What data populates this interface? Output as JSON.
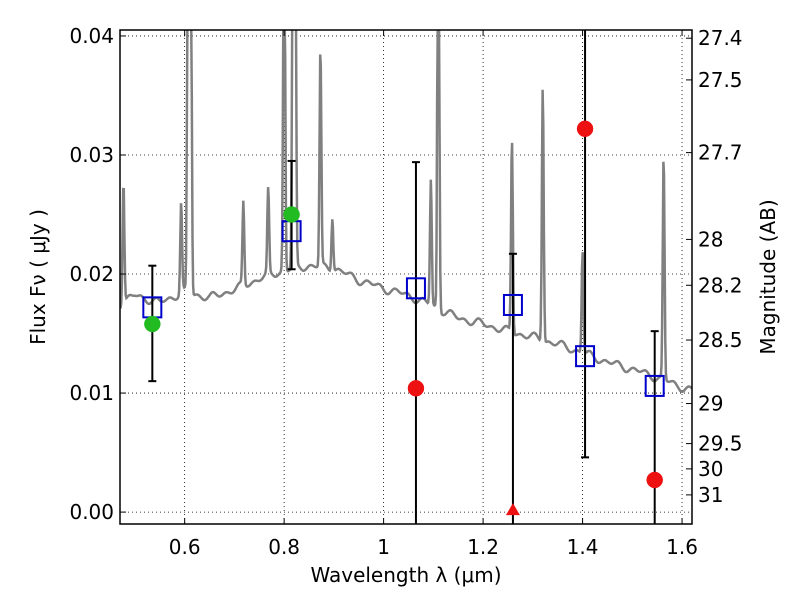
{
  "chart_data": {
    "type": "scatter",
    "xlabel": "Wavelength  λ (μm)",
    "ylabel": "Flux  Fν  ( μJy )",
    "y2label": "Magnitude (AB)",
    "xlim": [
      0.47,
      1.62
    ],
    "ylim": [
      -0.001,
      0.0405
    ],
    "grid": true,
    "x_ticks": [
      0.6,
      0.8,
      1.0,
      1.2,
      1.4,
      1.6
    ],
    "x_tick_labels": [
      "0.6",
      "0.8",
      "1",
      "1.2",
      "1.4",
      "1.6"
    ],
    "y_ticks": [
      0.0,
      0.01,
      0.02,
      0.03,
      0.04
    ],
    "y_tick_labels": [
      "0.00",
      "0.01",
      "0.02",
      "0.03",
      "0.04"
    ],
    "y2_ticks": [
      {
        "mag": 27.4,
        "label": "27.4"
      },
      {
        "mag": 27.5,
        "label": "27.5"
      },
      {
        "mag": 27.7,
        "label": "27.7"
      },
      {
        "mag": 28.0,
        "label": "28"
      },
      {
        "mag": 28.2,
        "label": "28.2"
      },
      {
        "mag": 28.5,
        "label": "28.5"
      },
      {
        "mag": 29.0,
        "label": "29"
      },
      {
        "mag": 29.5,
        "label": "29.5"
      },
      {
        "mag": 30.0,
        "label": "30"
      },
      {
        "mag": 31.0,
        "label": "31"
      }
    ],
    "model_sed": {
      "color": "#808080",
      "continuum": [
        [
          0.47,
          0.0175
        ],
        [
          0.5,
          0.0182
        ],
        [
          0.55,
          0.0176
        ],
        [
          0.6,
          0.0185
        ],
        [
          0.65,
          0.018
        ],
        [
          0.7,
          0.0187
        ],
        [
          0.75,
          0.0196
        ],
        [
          0.8,
          0.0203
        ],
        [
          0.85,
          0.0207
        ],
        [
          0.9,
          0.0205
        ],
        [
          0.95,
          0.0195
        ],
        [
          1.0,
          0.0188
        ],
        [
          1.05,
          0.0182
        ],
        [
          1.1,
          0.0173
        ],
        [
          1.15,
          0.0163
        ],
        [
          1.2,
          0.0158
        ],
        [
          1.25,
          0.0152
        ],
        [
          1.3,
          0.0147
        ],
        [
          1.35,
          0.0141
        ],
        [
          1.4,
          0.0134
        ],
        [
          1.45,
          0.0126
        ],
        [
          1.5,
          0.012
        ],
        [
          1.55,
          0.0113
        ],
        [
          1.6,
          0.0105
        ],
        [
          1.62,
          0.0102
        ]
      ],
      "lines": [
        [
          0.477,
          0.028
        ],
        [
          0.593,
          0.026
        ],
        [
          0.607,
          0.06
        ],
        [
          0.612,
          0.06
        ],
        [
          0.718,
          0.026
        ],
        [
          0.768,
          0.027
        ],
        [
          0.8,
          0.06
        ],
        [
          0.818,
          0.06
        ],
        [
          0.822,
          0.06
        ],
        [
          0.873,
          0.039
        ],
        [
          0.897,
          0.025
        ],
        [
          1.095,
          0.028
        ],
        [
          1.11,
          0.06
        ],
        [
          1.258,
          0.0315
        ],
        [
          1.32,
          0.036
        ],
        [
          1.4,
          0.022
        ],
        [
          1.563,
          0.03
        ]
      ]
    },
    "series": [
      {
        "marker": "open-square",
        "color": "#0000cc",
        "x": [
          0.535,
          0.815,
          1.065,
          1.26,
          1.405,
          1.545
        ],
        "y": [
          0.0172,
          0.0236,
          0.0188,
          0.0174,
          0.0131,
          0.0106
        ]
      },
      {
        "marker": "circle",
        "color": "#22bb22",
        "x": [
          0.535,
          0.815
        ],
        "y": [
          0.0158,
          0.025
        ]
      },
      {
        "marker": "circle",
        "color": "#ee1111",
        "x": [
          1.065,
          1.405,
          1.545
        ],
        "y": [
          0.0104,
          0.0322,
          0.0027
        ]
      },
      {
        "marker": "triangle-up",
        "color": "#ee1111",
        "x": [
          1.26
        ],
        "y": [
          0.0
        ]
      }
    ],
    "error_bars": [
      {
        "x": 0.535,
        "lo": 0.011,
        "hi": 0.0207
      },
      {
        "x": 0.815,
        "lo": 0.0204,
        "hi": 0.0295
      },
      {
        "x": 1.065,
        "lo": -0.001,
        "hi": 0.0294
      },
      {
        "x": 1.26,
        "lo": -0.001,
        "hi": 0.0217
      },
      {
        "x": 1.405,
        "lo": 0.0046,
        "hi": 0.0405
      },
      {
        "x": 1.545,
        "lo": -0.001,
        "hi": 0.0152
      }
    ]
  }
}
